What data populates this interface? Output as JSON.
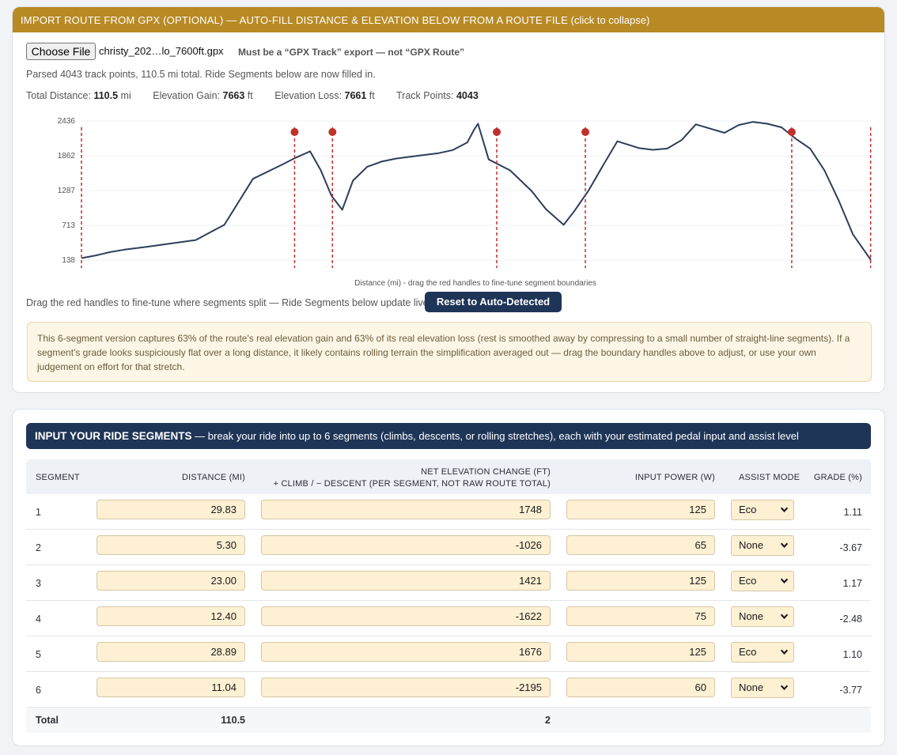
{
  "gpx": {
    "header_strong": "Import Route from GPX (Optional)",
    "header_rest": " — Auto-fill distance & elevation below from a route file",
    "header_hint": " (click to collapse)",
    "choose_file_label": "Choose File",
    "file_name": "christy_202…lo_7600ft.gpx",
    "file_note": "Must be a “GPX Track” export — not “GPX Route”",
    "parsed_text": "Parsed 4043 track points, 110.5 mi total. Ride Segments below are now filled in.",
    "stats": {
      "distance_label": "Total Distance:",
      "distance_value": "110.5",
      "distance_unit": "mi",
      "gain_label": "Elevation Gain:",
      "gain_value": "7663",
      "gain_unit": "ft",
      "loss_label": "Elevation Loss:",
      "loss_value": "7661",
      "loss_unit": "ft",
      "points_label": "Track Points:",
      "points_value": "4043"
    },
    "drag_note": "Drag the red handles to fine-tune where segments split — Ride Segments below update live.",
    "reset_label": "Reset to Auto-Detected",
    "warning": "This 6-segment version captures 63% of the route's real elevation gain and 63% of its real elevation loss (rest is smoothed away by compressing to a small number of straight-line segments). If a segment's grade looks suspiciously flat over a long distance, it likely contains rolling terrain the simplification averaged out — drag the boundary handles above to adjust, or use your own judgement on effort for that stretch."
  },
  "chart_data": {
    "type": "line",
    "xlabel": "Distance (mi) - drag the red handles to fine-tune segment boundaries",
    "ylabel": "",
    "xlim": [
      0,
      110.5
    ],
    "ylim": [
      138,
      2436
    ],
    "y_ticks": [
      "2436",
      "1862",
      "1287",
      "713",
      "138"
    ],
    "y_tick_values": [
      2436,
      1862,
      1287,
      713,
      138
    ],
    "grid": true,
    "colors": {
      "line": "#2c3e5c",
      "handle": "#c0312b"
    },
    "series": [
      {
        "x": [
          0,
          2,
          4,
          6,
          9,
          12,
          16,
          20,
          24,
          28,
          30,
          32,
          33.5,
          35,
          36.5,
          38,
          40,
          42,
          44,
          46,
          48,
          50,
          52,
          54,
          55,
          55.5,
          57,
          60,
          63,
          65,
          67.5,
          69,
          71,
          73,
          75,
          78,
          80,
          82,
          84,
          86,
          88,
          90,
          92,
          94,
          96,
          98,
          100,
          102,
          104,
          106,
          108,
          110.5
        ],
        "y": [
          170,
          215,
          270,
          310,
          355,
          405,
          470,
          720,
          1480,
          1710,
          1830,
          1935,
          1620,
          1200,
          970,
          1450,
          1680,
          1765,
          1815,
          1845,
          1875,
          1905,
          1955,
          2080,
          2300,
          2390,
          1800,
          1620,
          1280,
          980,
          720,
          950,
          1290,
          1700,
          2100,
          1990,
          1960,
          1980,
          2120,
          2380,
          2310,
          2240,
          2370,
          2420,
          2390,
          2330,
          2140,
          1980,
          1620,
          1120,
          560,
          140
        ]
      }
    ],
    "handles_x": [
      0,
      29.83,
      35.13,
      58.13,
      70.53,
      99.42,
      110.46
    ]
  },
  "segments": {
    "header_title": "Input Your Ride Segments",
    "header_desc": " — break your ride into up to 6 segments (climbs, descents, or rolling stretches), each with your estimated pedal input and assist level",
    "columns": {
      "segment": "Segment",
      "distance": "Distance (mi)",
      "elevation_line1": "Net Elevation Change (ft)",
      "elevation_line2": "+ climb / − descent (per segment, not raw route total)",
      "power": "Input Power (W)",
      "assist": "Assist Mode",
      "grade": "Grade (%)"
    },
    "rows": [
      {
        "num": "1",
        "distance": "29.83",
        "elevation": "1748",
        "power": "125",
        "assist": "Eco",
        "grade": "1.11"
      },
      {
        "num": "2",
        "distance": "5.30",
        "elevation": "-1026",
        "power": "65",
        "assist": "None",
        "grade": "-3.67"
      },
      {
        "num": "3",
        "distance": "23.00",
        "elevation": "1421",
        "power": "125",
        "assist": "Eco",
        "grade": "1.17"
      },
      {
        "num": "4",
        "distance": "12.40",
        "elevation": "-1622",
        "power": "75",
        "assist": "None",
        "grade": "-2.48"
      },
      {
        "num": "5",
        "distance": "28.89",
        "elevation": "1676",
        "power": "125",
        "assist": "Eco",
        "grade": "1.10"
      },
      {
        "num": "6",
        "distance": "11.04",
        "elevation": "-2195",
        "power": "60",
        "assist": "None",
        "grade": "-3.77"
      }
    ],
    "total": {
      "label": "Total",
      "distance": "110.5",
      "elevation": "2"
    }
  },
  "icons": {
    "chevron": "chevron-down-icon"
  }
}
